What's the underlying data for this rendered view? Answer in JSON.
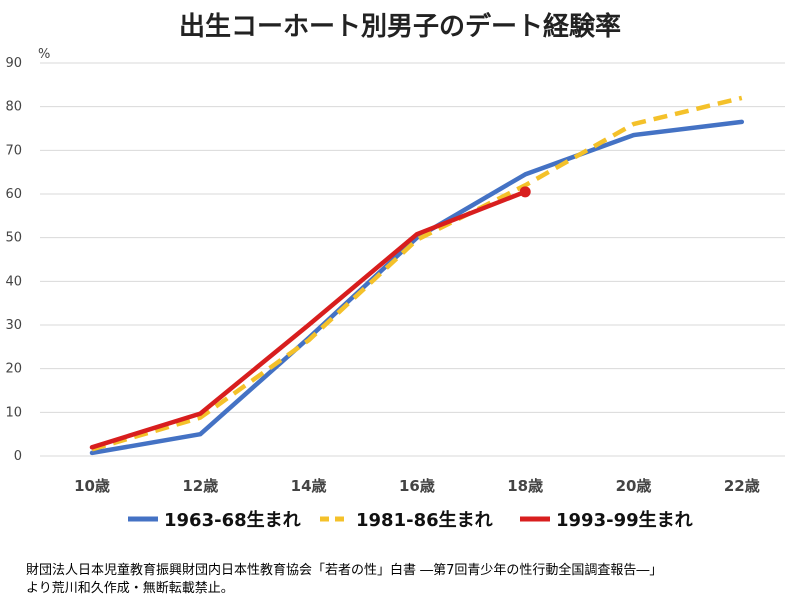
{
  "chart_data": {
    "type": "line",
    "title": "出生コーホート別男子のデート経験率",
    "y_unit": "%",
    "categories": [
      "10歳",
      "12歳",
      "14歳",
      "16歳",
      "18歳",
      "20歳",
      "22歳"
    ],
    "ylim": [
      0,
      90
    ],
    "yticks": [
      0,
      10,
      20,
      30,
      40,
      50,
      60,
      70,
      80,
      90
    ],
    "grid": true,
    "legend_position": "bottom",
    "series": [
      {
        "name": "1963-68生まれ",
        "color": "#4472C4",
        "style": "solid",
        "values": [
          0.7,
          5.0,
          27.0,
          50.0,
          64.5,
          73.5,
          76.5
        ]
      },
      {
        "name": "1981-86生まれ",
        "color": "#F4C12A",
        "style": "dashed",
        "values": [
          1.5,
          8.8,
          26.5,
          49.5,
          62.0,
          76.0,
          82.0
        ]
      },
      {
        "name": "1993-99生まれ",
        "color": "#D81E1E",
        "style": "solid",
        "values": [
          2.0,
          9.7,
          30.0,
          50.8,
          60.5,
          null,
          null
        ],
        "end_marker": true
      }
    ]
  },
  "source_note": {
    "line1": "財団法人日本児童教育振興財団内日本性教育協会「若者の性」白書 ―第7回青少年の性行動全国調査報告―」",
    "line2": "より荒川和久作成・無断転載禁止。"
  }
}
